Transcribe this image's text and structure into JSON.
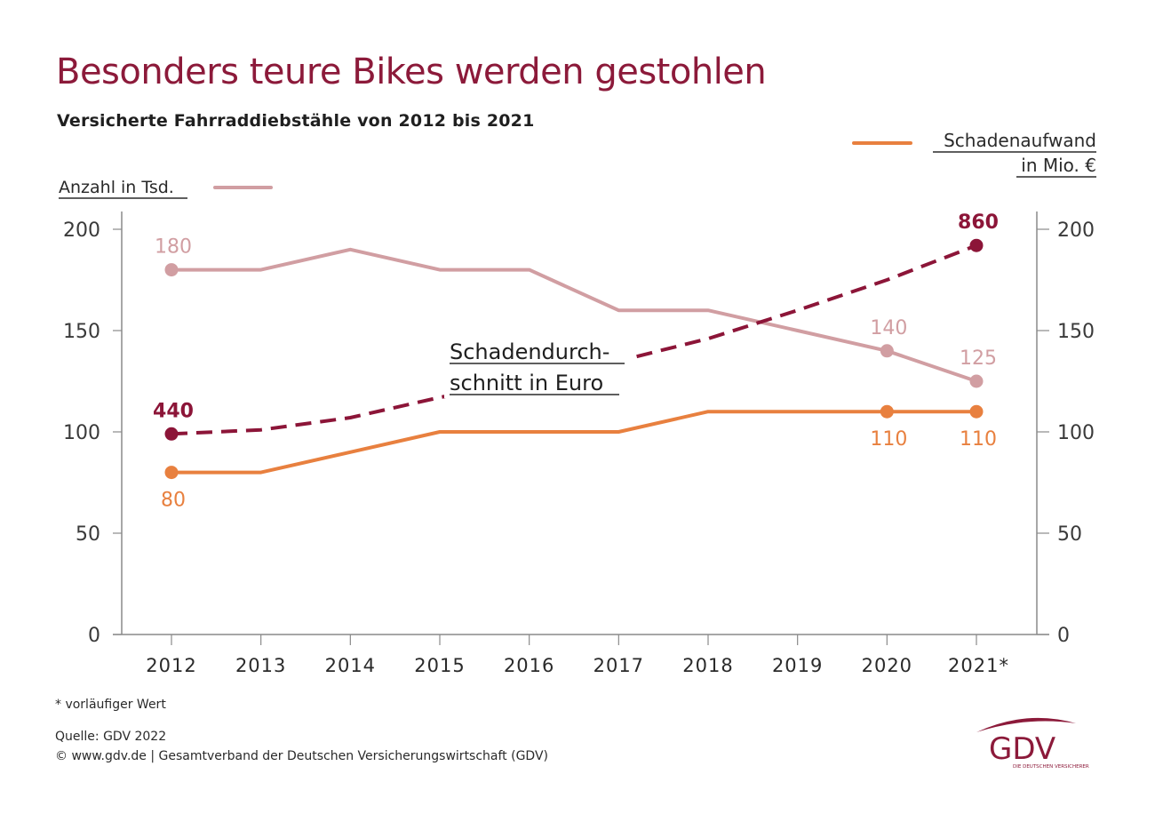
{
  "header": {
    "title": "Besonders teure Bikes werden gestohlen",
    "subtitle": "Versicherte Fahrraddiebstähle von 2012 bis 2021"
  },
  "colors": {
    "title": "#8c1a3a",
    "anzahl": "#d19ea2",
    "schadenaufwand": "#e8803f",
    "schadendurchschnitt": "#8c1538",
    "axis": "#8a8a8a",
    "text": "#2a2a2a"
  },
  "chart_data": {
    "type": "line",
    "title": "Besonders teure Bikes werden gestohlen",
    "subtitle": "Versicherte Fahrraddiebstähle von 2012 bis 2021",
    "categories": [
      "2012",
      "2013",
      "2014",
      "2015",
      "2016",
      "2017",
      "2018",
      "2019",
      "2020",
      "2021*"
    ],
    "ylim": [
      0,
      200
    ],
    "yticks": [
      0,
      50,
      100,
      150,
      200
    ],
    "y_right_ticks": [
      0,
      50,
      100,
      150,
      200
    ],
    "grid": false,
    "series": [
      {
        "name": "Anzahl in Tsd.",
        "key": "anzahl",
        "style": "solid",
        "values": [
          180,
          180,
          190,
          180,
          180,
          160,
          160,
          150,
          140,
          125
        ],
        "labeled_points": [
          {
            "index": 0,
            "label": "180",
            "position": "above"
          },
          {
            "index": 8,
            "label": "140",
            "position": "above"
          },
          {
            "index": 9,
            "label": "125",
            "position": "above"
          }
        ]
      },
      {
        "name": "Schadenaufwand in Mio. €",
        "key": "schadenaufwand",
        "style": "solid",
        "values": [
          80,
          80,
          90,
          100,
          100,
          100,
          110,
          110,
          110,
          110
        ],
        "labeled_points": [
          {
            "index": 0,
            "label": "80",
            "position": "below"
          },
          {
            "index": 8,
            "label": "110",
            "position": "below"
          },
          {
            "index": 9,
            "label": "110",
            "position": "below"
          }
        ]
      },
      {
        "name": "Schadendurchschnitt in Euro",
        "key": "schadendurchschnitt",
        "style": "dashed",
        "values": [
          99,
          101,
          107,
          117,
          125,
          135,
          146,
          160,
          175,
          192
        ],
        "labeled_points": [
          {
            "index": 0,
            "label": "440",
            "position": "above"
          },
          {
            "index": 9,
            "label": "860",
            "position": "above"
          }
        ]
      }
    ],
    "legend": {
      "anzahl": {
        "label": "Anzahl in Tsd.",
        "placement": "top-left"
      },
      "schadenaufwand": {
        "label_line1": "Schadenaufwand",
        "label_line2": "in Mio. €",
        "placement": "top-right"
      },
      "schadendurchschnitt": {
        "label_line1": "Schadendurch-",
        "label_line2": "schnitt in Euro",
        "placement": "inline-center"
      }
    }
  },
  "footer": {
    "note": "* vorläufiger Wert",
    "source": "Quelle: GDV 2022",
    "copyright": "© www.gdv.de | Gesamtverband der Deutschen Versicherungswirtschaft (GDV)"
  },
  "logo": {
    "text": "GDV",
    "tagline": "DIE DEUTSCHEN VERSICHERER"
  }
}
